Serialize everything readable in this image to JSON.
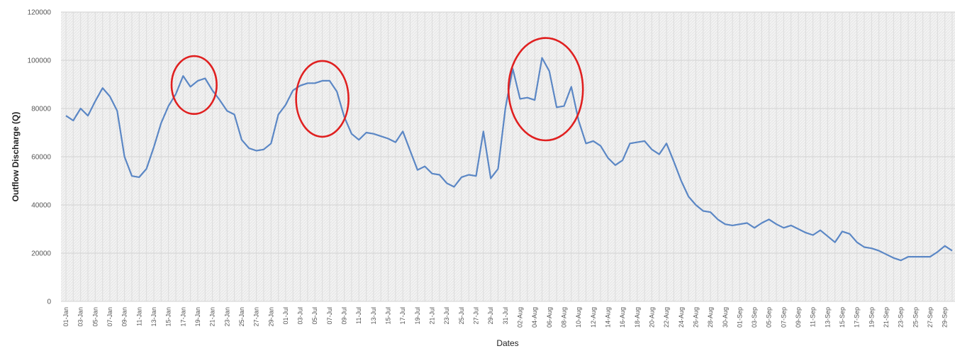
{
  "chart_data": {
    "type": "line",
    "title": "",
    "xlabel": "Dates",
    "ylabel": "Outflow Discharge (Q)",
    "ylim": [
      0,
      120000
    ],
    "yticks": [
      0,
      20000,
      40000,
      60000,
      80000,
      100000,
      120000
    ],
    "grid": true,
    "series_color": "#5b87c5",
    "highlight_color": "#e02020",
    "x_tick_labels": [
      "01-Jan",
      "03-Jan",
      "05-Jan",
      "07-Jan",
      "09-Jan",
      "11-Jan",
      "13-Jan",
      "15-Jan",
      "17-Jan",
      "19-Jan",
      "21-Jan",
      "23-Jan",
      "25-Jan",
      "27-Jan",
      "29-Jan",
      "01-Jul",
      "03-Jul",
      "05-Jul",
      "07-Jul",
      "09-Jul",
      "11-Jul",
      "13-Jul",
      "15-Jul",
      "17-Jul",
      "19-Jul",
      "21-Jul",
      "23-Jul",
      "25-Jul",
      "27-Jul",
      "29-Jul",
      "31-Jul",
      "02-Aug",
      "04-Aug",
      "06-Aug",
      "08-Aug",
      "10-Aug",
      "12-Aug",
      "14-Aug",
      "16-Aug",
      "18-Aug",
      "20-Aug",
      "22-Aug",
      "24-Aug",
      "26-Aug",
      "28-Aug",
      "30-Aug",
      "01-Sep",
      "03-Sep",
      "05-Sep",
      "07-Sep",
      "09-Sep",
      "11-Sep",
      "13-Sep",
      "15-Sep",
      "17-Sep",
      "19-Sep",
      "21-Sep",
      "23-Sep",
      "25-Sep",
      "27-Sep",
      "29-Sep"
    ],
    "series": [
      {
        "values": [
          77000,
          75000,
          80000,
          77000,
          83000,
          88500,
          85000,
          79000,
          60000,
          52000,
          51500,
          55000,
          64000,
          74000,
          81000,
          86000,
          93500,
          89000,
          91500,
          92500,
          87500,
          83500,
          79000,
          77500,
          67000,
          63500,
          62500,
          63000,
          65500,
          77500,
          81500,
          87500,
          89500,
          90500,
          90500,
          91500,
          91500,
          87000,
          76500,
          69500,
          67000,
          70000,
          69500,
          68500,
          67500,
          66000,
          70500,
          62500,
          54500,
          56000,
          53000,
          52500,
          49000,
          47500,
          51500,
          52500,
          52000,
          70500,
          51000,
          55000,
          80000,
          96500,
          84000,
          84500,
          83500,
          101000,
          95500,
          80500,
          81000,
          89000,
          75000,
          65500,
          66500,
          64500,
          59500,
          56500,
          58500,
          65500,
          66000,
          66500,
          63000,
          61000,
          65500,
          58000,
          50000,
          43500,
          40000,
          37500,
          37000,
          34000,
          32000,
          31500,
          32000,
          32500,
          30500,
          32500,
          34000,
          32000,
          30500,
          31500,
          30000,
          28500,
          27500,
          29500,
          27000,
          24500,
          29000,
          28000,
          24500,
          22500,
          22000,
          21000,
          19500,
          18000,
          17000,
          18500,
          18500,
          18500,
          18500,
          20500,
          23000,
          21000
        ]
      }
    ],
    "highlight_ranges": [
      [
        15,
        20
      ],
      [
        32,
        38
      ],
      [
        61,
        70
      ]
    ]
  }
}
